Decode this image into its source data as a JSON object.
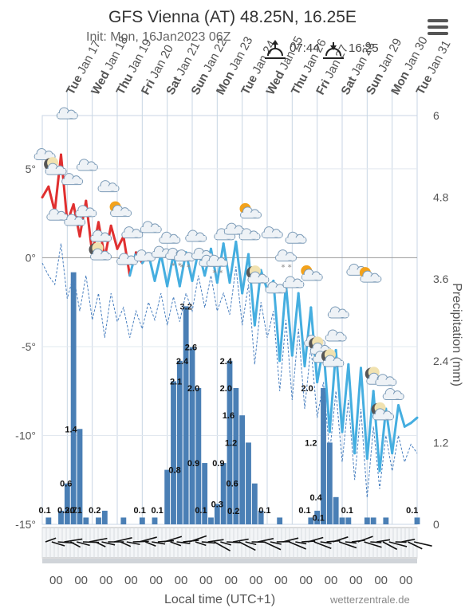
{
  "header": {
    "title": "GFS Vienna (AT) 48.25N, 16.25E",
    "init": "Init: Mon, 16Jan2023 06Z",
    "sunrise": "07:44",
    "sunset": "16:25"
  },
  "footer": {
    "xlabel": "Local time (UTC+1)",
    "credit": "wetterzentrale.de"
  },
  "chart_data": {
    "type": "line",
    "title": "GFS Vienna (AT) 48.25N, 16.25E",
    "xlabel": "Local time (UTC+1)",
    "ylabel_left": "",
    "ylabel_right": "Precipitation (mm)",
    "ylim_left": [
      -15,
      8
    ],
    "ylim_right": [
      0,
      6
    ],
    "left_ticks": [
      "5°",
      "0°",
      "-5°",
      "-10°",
      "-15°"
    ],
    "right_ticks": [
      "6",
      "4.8",
      "3.6",
      "2.4",
      "1.2",
      "0"
    ],
    "day_labels": [
      {
        "dow": "Tue",
        "date": "Jan 17"
      },
      {
        "dow": "Wed",
        "date": "Jan 18"
      },
      {
        "dow": "Thu",
        "date": "Jan 19"
      },
      {
        "dow": "Fri",
        "date": "Jan 20"
      },
      {
        "dow": "Sat",
        "date": "Jan 21"
      },
      {
        "dow": "Sun",
        "date": "Jan 22"
      },
      {
        "dow": "Mon",
        "date": "Jan 23"
      },
      {
        "dow": "Tue",
        "date": "Jan 24"
      },
      {
        "dow": "Wed",
        "date": "Jan 25"
      },
      {
        "dow": "Thu",
        "date": "Jan 26"
      },
      {
        "dow": "Fri",
        "date": "Jan 27"
      },
      {
        "dow": "Sat",
        "date": "Jan 28"
      },
      {
        "dow": "Sun",
        "date": "Jan 29"
      },
      {
        "dow": "Mon",
        "date": "Jan 30"
      },
      {
        "dow": "Tue",
        "date": "Jan 31"
      }
    ],
    "hour_label": "00",
    "series": [
      {
        "name": "",
        "kind": "temperature",
        "color_warm": "#e03030",
        "color_cold": "#45aee0",
        "x": [
          0,
          0.25,
          0.5,
          0.75,
          1,
          1.25,
          1.5,
          1.75,
          2,
          2.25,
          2.5,
          2.75,
          3,
          3.25,
          3.5,
          3.75,
          4,
          4.25,
          4.5,
          4.75,
          5,
          5.25,
          5.5,
          5.75,
          6,
          6.25,
          6.5,
          6.75,
          7,
          7.25,
          7.5,
          7.75,
          8,
          8.25,
          8.5,
          8.75,
          9,
          9.25,
          9.5,
          9.75,
          10,
          10.25,
          10.5,
          10.75,
          11,
          11.25,
          11.5,
          11.75,
          12,
          12.25,
          12.5,
          12.75,
          13,
          13.25,
          13.5,
          13.75,
          14,
          14.25,
          14.5,
          14.75,
          15
        ],
        "values": [
          3.4,
          4.0,
          2.6,
          5.8,
          2.0,
          3.0,
          1.2,
          3.2,
          0.2,
          2.0,
          0.0,
          1.8,
          0.5,
          1.2,
          -1.0,
          0.3,
          -0.3,
          0.2,
          -1.3,
          0.2,
          -1.6,
          0.2,
          -1.6,
          0.3,
          -1.3,
          0.4,
          -1.0,
          0.5,
          -1.4,
          0.8,
          -1.4,
          0.9,
          -2.0,
          0.2,
          -3.8,
          -0.7,
          -1.8,
          -1.3,
          -5.8,
          -1.5,
          -5.5,
          -2.0,
          -6.1,
          -2.8,
          -7.0,
          -5.0,
          -9.8,
          -5.2,
          -9.8,
          -6.0,
          -11.0,
          -6.2,
          -11.3,
          -7.5,
          -12.0,
          -8.5,
          -11.0,
          -8.3,
          -9.5,
          -9.3,
          -9.0
        ]
      },
      {
        "name": "",
        "kind": "dewpoint",
        "color": "#4a80c0",
        "x": [
          0,
          0.25,
          0.5,
          0.75,
          1,
          1.25,
          1.5,
          1.75,
          2,
          2.25,
          2.5,
          2.75,
          3,
          3.25,
          3.5,
          3.75,
          4,
          4.25,
          4.5,
          4.75,
          5,
          5.25,
          5.5,
          5.75,
          6,
          6.25,
          6.5,
          6.75,
          7,
          7.25,
          7.5,
          7.75,
          8,
          8.25,
          8.5,
          8.75,
          9,
          9.25,
          9.5,
          9.75,
          10,
          10.25,
          10.5,
          10.75,
          11,
          11.25,
          11.5,
          11.75,
          12,
          12.25,
          12.5,
          12.75,
          13,
          13.25,
          13.5,
          13.75,
          14,
          14.25,
          14.5,
          14.75,
          15
        ],
        "values": [
          -0.3,
          -1.0,
          -1.5,
          0.8,
          -2.3,
          -1.0,
          -3.0,
          -1.0,
          -3.5,
          -2.0,
          -4.5,
          -2.0,
          -3.6,
          -2.8,
          -4.5,
          -3.0,
          -4.0,
          -2.5,
          -3.5,
          -2.0,
          -3.8,
          -2.2,
          -3.6,
          -2.0,
          -3.0,
          -1.0,
          -2.8,
          -1.0,
          -3.0,
          -2.0,
          -3.2,
          -0.5,
          -3.8,
          -1.5,
          -6.0,
          -2.5,
          -4.5,
          -3.0,
          -7.5,
          -3.5,
          -8.0,
          -4.0,
          -8.5,
          -5.0,
          -9.0,
          -7.0,
          -11.0,
          -7.5,
          -11.5,
          -8.0,
          -12.5,
          -8.5,
          -13.5,
          -9.5,
          -13.0,
          -10.0,
          -12.0,
          -10.0,
          -11.5,
          -10.5,
          -11.0
        ]
      },
      {
        "name": "",
        "kind": "precipitation",
        "color": "#4a7fb5",
        "x": [
          0,
          0.25,
          0.5,
          0.75,
          1,
          1.25,
          1.5,
          1.75,
          2,
          2.25,
          2.5,
          2.75,
          3,
          3.25,
          3.5,
          3.75,
          4,
          4.25,
          4.5,
          4.75,
          5,
          5.25,
          5.5,
          5.75,
          6,
          6.25,
          6.5,
          6.75,
          7,
          7.25,
          7.5,
          7.75,
          8,
          8.25,
          8.5,
          8.75,
          9,
          9.25,
          9.5,
          9.75,
          10,
          10.25,
          10.5,
          10.75,
          11,
          11.25,
          11.5,
          11.75,
          12,
          12.25,
          12.5,
          12.75,
          13,
          13.25,
          13.5,
          13.75,
          14,
          14.25,
          14.5,
          14.75,
          15
        ],
        "values": [
          0,
          0.1,
          0,
          0.2,
          0.6,
          3.7,
          1.4,
          0.1,
          0,
          0.1,
          0.2,
          0,
          0,
          0.1,
          0,
          0,
          0.1,
          0,
          0.1,
          0,
          0.8,
          2.1,
          2.4,
          3.2,
          2.6,
          2.0,
          0.9,
          0.1,
          0.3,
          0.9,
          2.4,
          2.0,
          1.6,
          1.2,
          0.6,
          0.2,
          0,
          0,
          0.1,
          0,
          0,
          0,
          0,
          0.1,
          0.2,
          2.0,
          1.2,
          0.4,
          0.1,
          0.1,
          0,
          0,
          0.1,
          0.1,
          0,
          0.1,
          0,
          0,
          0,
          0,
          0.1
        ],
        "labels": [
          {
            "x": 0.1,
            "text": "0.1"
          },
          {
            "x": 0.85,
            "text": "0.2"
          },
          {
            "x": 1.15,
            "text": "3.7"
          },
          {
            "x": 1.15,
            "text": "1.4",
            "at": 1.4
          },
          {
            "x": 0.95,
            "text": "0.6",
            "at": 0.6
          },
          {
            "x": 1.35,
            "text": "0.1"
          },
          {
            "x": 2.1,
            "text": "0.2"
          },
          {
            "x": 3.9,
            "text": "0.1"
          },
          {
            "x": 4.6,
            "text": "0.1"
          },
          {
            "x": 5.3,
            "text": "0.8",
            "at": 0.8
          },
          {
            "x": 5.35,
            "text": "2.1",
            "at": 2.1
          },
          {
            "x": 5.6,
            "text": "2.4",
            "at": 2.4
          },
          {
            "x": 5.75,
            "text": "3.2",
            "at": 3.2
          },
          {
            "x": 5.95,
            "text": "2.6",
            "at": 2.6
          },
          {
            "x": 6.05,
            "text": "2.0",
            "at": 2.0
          },
          {
            "x": 6.05,
            "text": "0.9",
            "at": 0.9
          },
          {
            "x": 6.35,
            "text": "0.1"
          },
          {
            "x": 7.0,
            "text": "0.3",
            "at": 0.3
          },
          {
            "x": 7.05,
            "text": "0.9",
            "at": 0.9
          },
          {
            "x": 7.35,
            "text": "2.4",
            "at": 2.4
          },
          {
            "x": 7.35,
            "text": "2.0",
            "at": 2.0
          },
          {
            "x": 7.45,
            "text": "1.6",
            "at": 1.6
          },
          {
            "x": 7.55,
            "text": "1.2",
            "at": 1.2
          },
          {
            "x": 7.6,
            "text": "0.6",
            "at": 0.6
          },
          {
            "x": 7.65,
            "text": "0.2",
            "at": 0.2
          },
          {
            "x": 8.9,
            "text": "0.1"
          },
          {
            "x": 10.5,
            "text": "0.1"
          },
          {
            "x": 10.6,
            "text": "2.0",
            "at": 2.0
          },
          {
            "x": 10.75,
            "text": "1.2",
            "at": 1.2
          },
          {
            "x": 10.95,
            "text": "0.4",
            "at": 0.4
          },
          {
            "x": 11.05,
            "text": "0.1",
            "at": 0.1
          },
          {
            "x": 12.2,
            "text": "0.1"
          },
          {
            "x": 14.8,
            "text": "0.1"
          }
        ]
      }
    ],
    "weather_icons": [
      {
        "x": 0.1,
        "t": 5.2,
        "icon": "cloud"
      },
      {
        "x": 0.45,
        "t": 4.5,
        "icon": "moon-cloud"
      },
      {
        "x": 0.6,
        "t": 1.8,
        "icon": "cloud"
      },
      {
        "x": 1.0,
        "t": 7.5,
        "icon": "cloud"
      },
      {
        "x": 1.2,
        "t": 3.8,
        "icon": "cloud"
      },
      {
        "x": 1.3,
        "t": 1.5,
        "icon": "cloud"
      },
      {
        "x": 1.75,
        "t": 2.0,
        "icon": "cloud"
      },
      {
        "x": 1.8,
        "t": 4.6,
        "icon": "cloud"
      },
      {
        "x": 2.25,
        "t": -0.3,
        "icon": "moon-cloud"
      },
      {
        "x": 2.35,
        "t": 0.6,
        "icon": "cloud"
      },
      {
        "x": 2.65,
        "t": 3.4,
        "icon": "cloud"
      },
      {
        "x": 3.05,
        "t": 2.1,
        "icon": "sun-cloud"
      },
      {
        "x": 3.4,
        "t": -0.7,
        "icon": "cloud"
      },
      {
        "x": 3.6,
        "t": 0.8,
        "icon": "cloud"
      },
      {
        "x": 4.1,
        "t": -0.5,
        "icon": "cloud"
      },
      {
        "x": 4.35,
        "t": 1.1,
        "icon": "cloud"
      },
      {
        "x": 4.8,
        "t": -0.3,
        "icon": "cloud"
      },
      {
        "x": 5.1,
        "t": 0.5,
        "icon": "cloud"
      },
      {
        "x": 5.35,
        "t": -0.4,
        "icon": "snow-cloud"
      },
      {
        "x": 5.7,
        "t": -0.5,
        "icon": "snow-cloud"
      },
      {
        "x": 6.15,
        "t": 0.6,
        "icon": "cloud"
      },
      {
        "x": 6.4,
        "t": -0.4,
        "icon": "cloud"
      },
      {
        "x": 6.7,
        "t": -0.8,
        "icon": "cloud"
      },
      {
        "x": 7.0,
        "t": -0.8,
        "icon": "snow-cloud"
      },
      {
        "x": 7.3,
        "t": 0.7,
        "icon": "cloud"
      },
      {
        "x": 7.7,
        "t": 1.0,
        "icon": "cloud"
      },
      {
        "x": 8.25,
        "t": 2.0,
        "icon": "sun-cloud"
      },
      {
        "x": 8.3,
        "t": 0.7,
        "icon": "cloud"
      },
      {
        "x": 8.55,
        "t": -1.6,
        "icon": "moon-cloud"
      },
      {
        "x": 9.2,
        "t": 0.8,
        "icon": "cloud"
      },
      {
        "x": 9.35,
        "t": -2.3,
        "icon": "cloud"
      },
      {
        "x": 9.75,
        "t": -0.5,
        "icon": "snow-cloud"
      },
      {
        "x": 10.05,
        "t": -2.0,
        "icon": "cloud"
      },
      {
        "x": 10.15,
        "t": 0.5,
        "icon": "cloud"
      },
      {
        "x": 10.7,
        "t": -1.5,
        "icon": "sun-cloud"
      },
      {
        "x": 10.9,
        "t": -5.3,
        "icon": "cloud"
      },
      {
        "x": 11.05,
        "t": -5.6,
        "icon": "moon-cloud"
      },
      {
        "x": 11.25,
        "t": -6.2,
        "icon": "cloud"
      },
      {
        "x": 11.55,
        "t": -6.3,
        "icon": "moon-cloud"
      },
      {
        "x": 11.75,
        "t": -5.0,
        "icon": "cloud"
      },
      {
        "x": 11.85,
        "t": -3.7,
        "icon": "cloud"
      },
      {
        "x": 12.6,
        "t": -1.3,
        "icon": "cloud"
      },
      {
        "x": 13.05,
        "t": -1.6,
        "icon": "sun-cloud"
      },
      {
        "x": 13.3,
        "t": -7.3,
        "icon": "moon-cloud"
      },
      {
        "x": 13.55,
        "t": -9.3,
        "icon": "moon-cloud"
      },
      {
        "x": 13.75,
        "t": -7.5,
        "icon": "cloud"
      },
      {
        "x": 14.05,
        "t": -8.3,
        "icon": "cloud"
      }
    ],
    "icon_colors": {
      "cloud_fill": "#eef2f6",
      "cloud_stroke": "#7d9cb8",
      "sun": "#f3a21b",
      "moon": "#555555",
      "grid": "#c8d6e4",
      "zero_line": "#999999"
    }
  }
}
